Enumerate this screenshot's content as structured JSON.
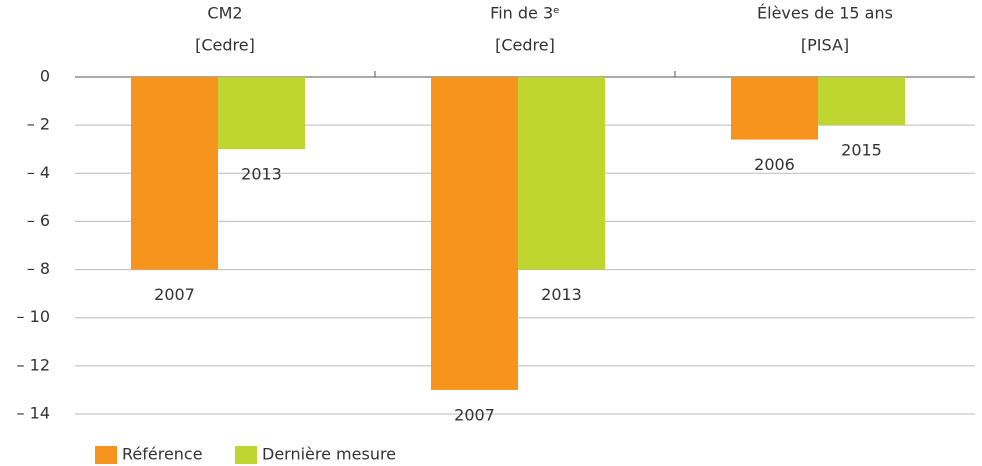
{
  "chart_data": {
    "type": "bar",
    "categories": [
      [
        "CM2",
        "[Cedre]"
      ],
      [
        "Fin de 3ᵉ",
        "[Cedre]"
      ],
      [
        "Élèves de 15 ans",
        "[PISA]"
      ]
    ],
    "series": [
      {
        "name": "Référence",
        "color": "#f7941d",
        "values": [
          -8,
          -13,
          -2.6
        ],
        "labels": [
          "2007",
          "2007",
          "2006"
        ]
      },
      {
        "name": "Dernière mesure",
        "color": "#bed62f",
        "values": [
          -3,
          -8,
          -2
        ],
        "labels": [
          "2013",
          "2013",
          "2015"
        ]
      }
    ],
    "ylim": [
      0,
      -14
    ],
    "yticks": [
      0,
      {
        "value": -2,
        "label": "– 2"
      },
      {
        "value": -4,
        "label": "– 4"
      },
      {
        "value": -6,
        "label": "– 6"
      },
      {
        "value": -8,
        "label": "– 8"
      },
      {
        "value": -10,
        "label": "– 10"
      },
      {
        "value": -12,
        "label": "– 12"
      },
      {
        "value": -14,
        "label": "– 14"
      }
    ],
    "grid": true,
    "legend": "bottom-left"
  }
}
